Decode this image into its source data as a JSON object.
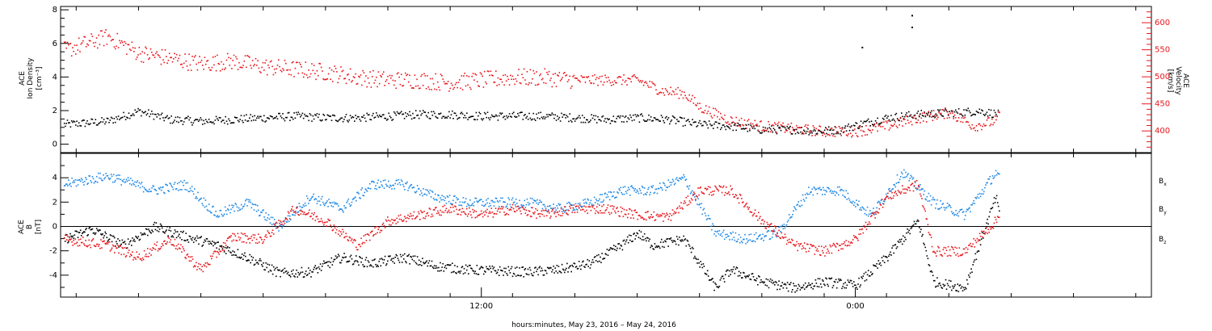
{
  "caption": "hours:minutes, May 23, 2016 – May 24, 2016",
  "colors": {
    "black": "#000000",
    "red": "#e8161b",
    "blue": "#1e88e5"
  },
  "chart_data": [
    {
      "type": "scatter",
      "panel": "top",
      "ylabel_left": [
        "ACE",
        "Ion Density",
        "[cm⁻³]"
      ],
      "ylabel_right": [
        "ACE",
        "Velocity",
        "[km/s]"
      ],
      "y_left_ticks": [
        "0",
        "2",
        "4",
        "6",
        "8"
      ],
      "y_right_ticks": [
        "400",
        "450",
        "500",
        "550",
        "600"
      ],
      "ylim_left": [
        -0.5,
        8.2
      ],
      "ylim_right": [
        360,
        630
      ],
      "xlim_hours": [
        -1.5,
        33.5
      ],
      "x_tick_labels": [
        {
          "hour": 12,
          "label": "12:00"
        },
        {
          "hour": 24,
          "label": "0:00"
        }
      ],
      "series": [
        {
          "color": "black",
          "axis": "left",
          "quantity": "ion density",
          "x": [
            -1.4,
            0,
            1,
            2,
            3,
            4,
            5,
            6,
            7,
            8,
            9,
            10,
            11,
            12,
            13,
            14,
            15,
            16,
            17,
            18,
            19,
            20,
            21,
            22,
            22.8,
            23.5,
            24.3,
            25,
            26,
            27,
            28,
            28.6
          ],
          "y": [
            1.2,
            1.4,
            2.0,
            1.5,
            1.4,
            1.5,
            1.6,
            1.7,
            1.6,
            1.6,
            1.7,
            1.8,
            1.8,
            1.7,
            1.7,
            1.7,
            1.6,
            1.5,
            1.6,
            1.5,
            1.2,
            1.1,
            0.9,
            0.9,
            0.8,
            0.9,
            1.3,
            1.6,
            1.8,
            1.9,
            2.0,
            1.8
          ]
        },
        {
          "color": "red",
          "axis": "right",
          "quantity": "velocity",
          "x": [
            -1.4,
            0,
            1,
            2,
            3,
            4,
            5,
            6,
            7,
            8,
            9,
            10,
            11,
            12,
            13,
            14,
            15,
            16,
            17,
            17.8,
            18.5,
            19,
            20,
            21,
            22,
            23,
            24,
            25,
            26,
            27,
            27.8,
            28.5,
            28.6
          ],
          "y": [
            550,
            575,
            545,
            535,
            525,
            530,
            520,
            515,
            510,
            500,
            495,
            495,
            490,
            495,
            500,
            500,
            495,
            495,
            495,
            475,
            470,
            445,
            420,
            410,
            405,
            400,
            400,
            410,
            425,
            435,
            410,
            420,
            430
          ]
        }
      ],
      "isolated_points": [
        {
          "color": "black",
          "x": 24.2,
          "y": 5.8
        },
        {
          "color": "black",
          "x": 25.8,
          "y": 7.7
        },
        {
          "color": "black",
          "x": 25.8,
          "y": 7.0
        }
      ]
    },
    {
      "type": "scatter",
      "panel": "bottom",
      "ylabel_left": [
        "ACE",
        "B",
        "[nT]"
      ],
      "y_ticks": [
        "-4",
        "-2",
        "0",
        "2",
        "4"
      ],
      "ylim": [
        -5.8,
        6.0
      ],
      "xlim_hours": [
        -1.5,
        33.5
      ],
      "legend": [
        {
          "base": "B",
          "sub": "x",
          "color": "black"
        },
        {
          "base": "B",
          "sub": "y",
          "color": "blue"
        },
        {
          "base": "B",
          "sub": "z",
          "color": "red"
        }
      ],
      "legend_placement": "right",
      "zero_line": true,
      "series": [
        {
          "color": "black",
          "component": "Bx",
          "x": [
            -1.4,
            -0.5,
            0.5,
            1.5,
            2.5,
            3.5,
            4.5,
            5.5,
            6.5,
            7.5,
            8.5,
            9.5,
            10.5,
            11.5,
            12.5,
            13.5,
            14.5,
            15.5,
            16.5,
            17,
            17.5,
            18.5,
            19.5,
            20,
            21,
            22,
            23,
            24,
            25,
            26,
            26.5,
            27.5,
            28.5,
            28.6
          ],
          "y": [
            -1.0,
            -0.2,
            -1.5,
            0.0,
            -0.8,
            -1.5,
            -2.5,
            -3.8,
            -3.7,
            -2.5,
            -3.0,
            -2.5,
            -3.2,
            -3.5,
            -3.6,
            -3.7,
            -3.5,
            -3.0,
            -1.5,
            -0.5,
            -1.5,
            -1.0,
            -5.0,
            -3.5,
            -4.5,
            -5.0,
            -4.5,
            -4.8,
            -2.5,
            0.5,
            -4.5,
            -5.0,
            2.5,
            1.0
          ]
        },
        {
          "color": "blue",
          "component": "By",
          "x": [
            -1.4,
            0,
            1.5,
            2.5,
            3.5,
            4.5,
            5.5,
            6.5,
            7.5,
            8.5,
            9.5,
            10.5,
            11.5,
            12.5,
            13.5,
            14.5,
            15.5,
            16.5,
            17.5,
            18.5,
            19.5,
            20.5,
            21.5,
            22.5,
            23.5,
            24.5,
            25.5,
            26.5,
            27.5,
            28.5,
            28.6
          ],
          "y": [
            3.5,
            4.2,
            3.0,
            3.5,
            1.0,
            2.0,
            0.0,
            2.5,
            1.5,
            3.5,
            3.5,
            2.5,
            2.0,
            2.0,
            2.0,
            1.5,
            2.0,
            3.0,
            3.0,
            4.0,
            -0.5,
            -1.0,
            -0.5,
            3.0,
            3.0,
            1.0,
            4.5,
            2.0,
            1.0,
            4.5,
            4.0
          ]
        },
        {
          "color": "red",
          "component": "Bz",
          "x": [
            -1.4,
            0,
            1,
            2,
            3,
            4,
            5,
            6,
            7,
            8,
            9,
            10,
            11,
            12,
            13,
            14,
            15,
            16,
            17,
            18,
            19,
            20,
            21,
            22,
            23,
            24,
            25,
            26,
            26.5,
            27.5,
            28.5,
            28.6
          ],
          "y": [
            -1.0,
            -1.5,
            -2.5,
            -1.0,
            -3.5,
            -0.8,
            -1.0,
            1.5,
            0.5,
            -1.5,
            0.5,
            1.0,
            1.5,
            1.0,
            1.5,
            1.0,
            1.5,
            1.5,
            1.0,
            0.8,
            3.0,
            3.0,
            0.5,
            -1.5,
            -2.0,
            -1.0,
            2.5,
            3.5,
            -2.0,
            -2.0,
            0.5,
            1.0
          ]
        }
      ]
    }
  ]
}
